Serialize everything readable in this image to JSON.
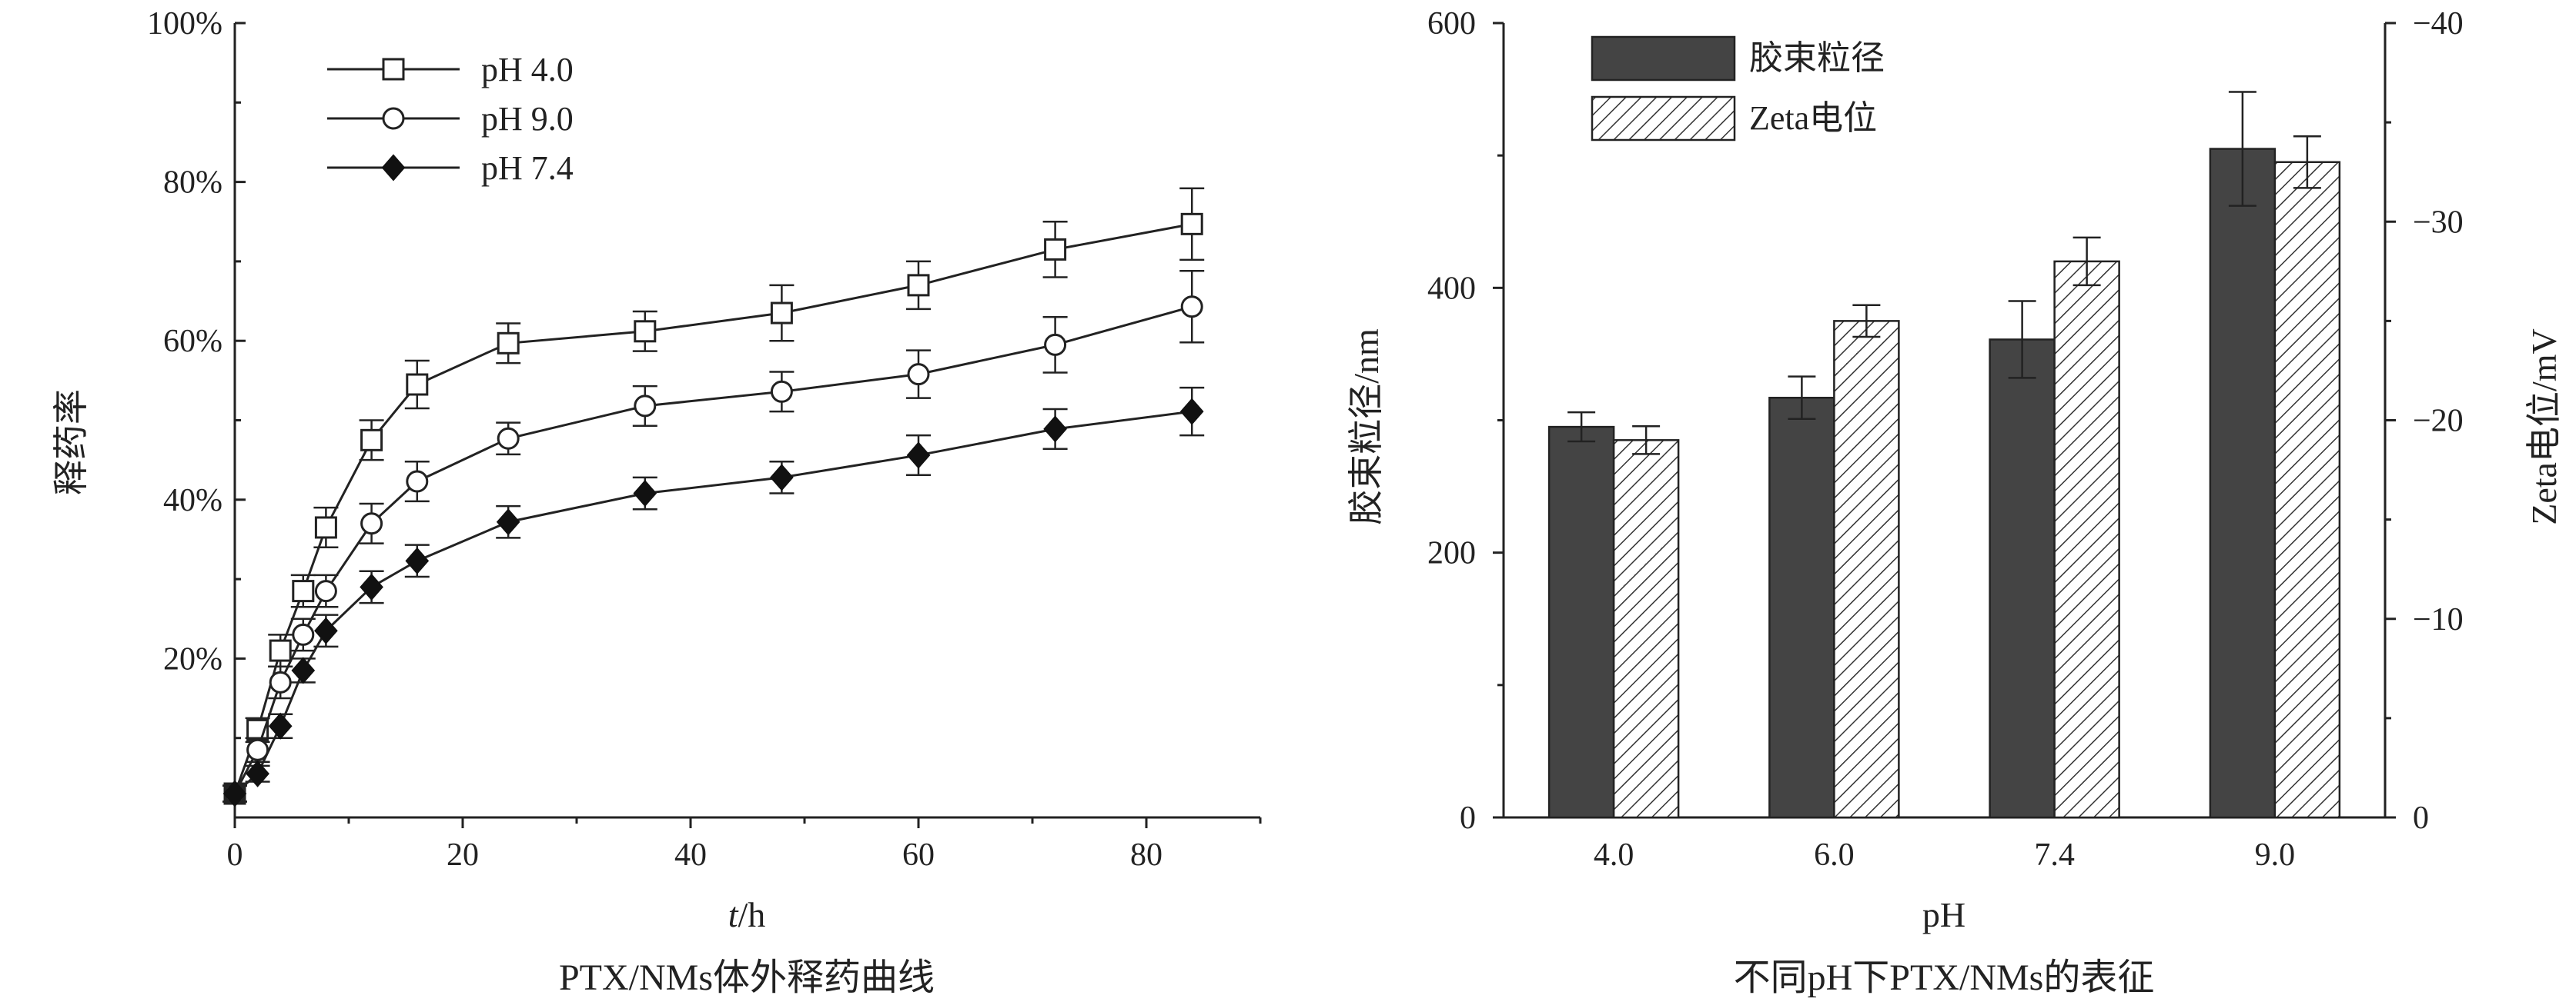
{
  "chart_data": [
    {
      "type": "line",
      "caption": "PTX/NMs体外释药曲线",
      "xlabel_italic": "t",
      "xlabel_rest": "/h",
      "ylabel": "释药率",
      "xlim": [
        0,
        90
      ],
      "ylim": [
        0,
        100
      ],
      "x_ticks": [
        "0",
        "20",
        "40",
        "60",
        "80"
      ],
      "y_ticks": [
        "20%",
        "40%",
        "60%",
        "80%",
        "100%"
      ],
      "legend_position": "top-left",
      "x": [
        0,
        2,
        4,
        6,
        8,
        12,
        16,
        24,
        36,
        48,
        60,
        72,
        84
      ],
      "series": [
        {
          "name": "pH 4.0",
          "marker": "open-square",
          "values": [
            3,
            11,
            21,
            28.5,
            36.5,
            47.5,
            54.5,
            59.7,
            61.2,
            63.5,
            67,
            71.5,
            74.7
          ],
          "errors": [
            1,
            1.5,
            2,
            2,
            2.5,
            2.5,
            3,
            2.5,
            2.5,
            3.5,
            3,
            3.5,
            4.5
          ]
        },
        {
          "name": "pH 9.0",
          "marker": "open-circle",
          "values": [
            3,
            8.5,
            17,
            23,
            28.5,
            37,
            42.3,
            47.7,
            51.8,
            53.6,
            55.8,
            59.5,
            64.3
          ],
          "errors": [
            1,
            1.5,
            2,
            2,
            2,
            2.5,
            2.5,
            2,
            2.5,
            2.5,
            3,
            3.5,
            4.5
          ]
        },
        {
          "name": "pH 7.4",
          "marker": "filled-diamond",
          "values": [
            3,
            5.5,
            11.5,
            18.5,
            23.5,
            29,
            32.3,
            37.2,
            40.8,
            42.8,
            45.6,
            48.9,
            51.1
          ],
          "errors": [
            1,
            1,
            1.5,
            1.5,
            2,
            2,
            2,
            2,
            2,
            2,
            2.5,
            2.5,
            3
          ]
        }
      ]
    },
    {
      "type": "bar",
      "caption": "不同pH下PTX/NMs的表征",
      "xlabel": "pH",
      "ylabel_left": "胶束粒径/nm",
      "ylabel_right": "Zeta电位/mV",
      "categories": [
        "4.0",
        "6.0",
        "7.4",
        "9.0"
      ],
      "ylim_left": [
        0,
        600
      ],
      "ylim_right": [
        0,
        -40
      ],
      "left_ticks": [
        "0",
        "200",
        "400",
        "600"
      ],
      "right_ticks": [
        "0",
        "−10",
        "−20",
        "−30",
        "−40"
      ],
      "legend_position": "top-left",
      "series": [
        {
          "name": "胶束粒径",
          "axis": "left",
          "fill": "#444444",
          "values": [
            295,
            317,
            361,
            505
          ],
          "errors": [
            11,
            16,
            29,
            43
          ]
        },
        {
          "name": "Zeta电位",
          "axis": "right",
          "fill": "hatched",
          "values": [
            -19,
            -25,
            -28,
            -33
          ],
          "errors": [
            0.7,
            0.8,
            1.2,
            1.3
          ]
        }
      ]
    }
  ]
}
